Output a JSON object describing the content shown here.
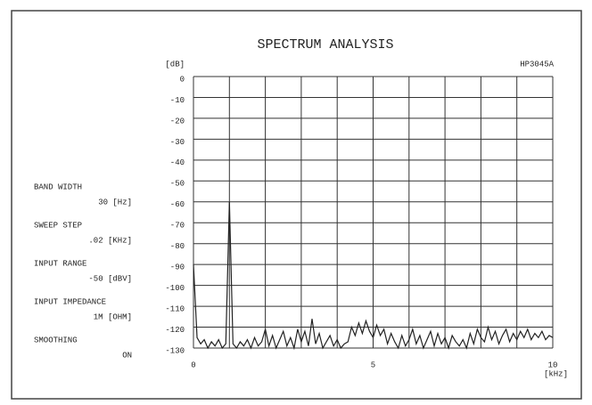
{
  "chart_data": {
    "type": "line",
    "title": "SPECTRUM ANALYSIS",
    "instrument": "HP3045A",
    "ylabel": "[dB]",
    "xlabel": "[kHz]",
    "x": [
      0,
      0.1,
      0.2,
      0.3,
      0.4,
      0.5,
      0.6,
      0.7,
      0.8,
      0.9,
      1,
      1.1,
      1.2,
      1.3,
      1.4,
      1.5,
      1.6,
      1.7,
      1.8,
      1.9,
      2,
      2.1,
      2.2,
      2.3,
      2.4,
      2.5,
      2.6,
      2.7,
      2.8,
      2.9,
      3,
      3.1,
      3.2,
      3.3,
      3.4,
      3.5,
      3.6,
      3.7,
      3.8,
      3.9,
      4,
      4.1,
      4.2,
      4.3,
      4.4,
      4.5,
      4.6,
      4.7,
      4.8,
      4.9,
      5,
      5.1,
      5.2,
      5.3,
      5.4,
      5.5,
      5.6,
      5.7,
      5.8,
      5.9,
      6,
      6.1,
      6.2,
      6.3,
      6.4,
      6.5,
      6.6,
      6.7,
      6.8,
      6.9,
      7,
      7.1,
      7.2,
      7.3,
      7.4,
      7.5,
      7.6,
      7.7,
      7.8,
      7.9,
      8,
      8.1,
      8.2,
      8.3,
      8.4,
      8.5,
      8.6,
      8.7,
      8.8,
      8.9,
      9,
      9.1,
      9.2,
      9.3,
      9.4,
      9.5,
      9.6,
      9.7,
      9.8,
      9.9,
      10
    ],
    "series": [
      {
        "color": "#222222",
        "values": [
          -90,
          -125,
          -128,
          -126,
          -130,
          -127,
          -129,
          -126,
          -130,
          -128,
          -60,
          -128,
          -130,
          -127,
          -129,
          -126,
          -130,
          -125,
          -129,
          -127,
          -121,
          -129,
          -124,
          -130,
          -126,
          -122,
          -129,
          -125,
          -130,
          -121,
          -127,
          -122,
          -129,
          -116,
          -128,
          -123,
          -130,
          -127,
          -124,
          -129,
          -126,
          -130,
          -128,
          -127,
          -120,
          -124,
          -118,
          -123,
          -117,
          -122,
          -125,
          -119,
          -124,
          -121,
          -128,
          -123,
          -127,
          -130,
          -124,
          -129,
          -126,
          -121,
          -128,
          -124,
          -130,
          -126,
          -122,
          -129,
          -123,
          -128,
          -125,
          -130,
          -124,
          -127,
          -129,
          -126,
          -130,
          -123,
          -128,
          -121,
          -125,
          -127,
          -120,
          -126,
          -122,
          -128,
          -124,
          -121,
          -127,
          -123,
          -126,
          -122,
          -125,
          -121,
          -126,
          -123,
          -125,
          -122,
          -126,
          -124,
          -125
        ]
      }
    ],
    "xlim": [
      0,
      10
    ],
    "ylim": [
      -130,
      0
    ],
    "xticks": [
      0,
      5,
      10
    ],
    "xgrid": [
      0,
      1,
      2,
      3,
      4,
      5,
      6,
      7,
      8,
      9,
      10
    ],
    "yticks": [
      0,
      -10,
      -20,
      -30,
      -40,
      -50,
      -60,
      -70,
      -80,
      -90,
      -100,
      -110,
      -120,
      -130
    ],
    "grid": true
  },
  "panel": [
    {
      "label": "BAND WIDTH",
      "value": "30 [Hz]"
    },
    {
      "label": "SWEEP STEP",
      "value": ".02 [KHz]"
    },
    {
      "label": "INPUT RANGE",
      "value": "-50 [dBV]"
    },
    {
      "label": "INPUT IMPEDANCE",
      "value": "1M [OHM]"
    },
    {
      "label": "SMOOTHING",
      "value": "ON"
    }
  ]
}
